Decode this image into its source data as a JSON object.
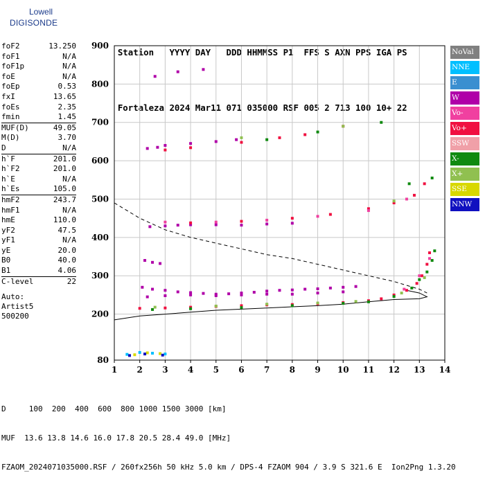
{
  "logo": {
    "line1": "Lowell",
    "line2": "DIGISONDE"
  },
  "header": {
    "labels": [
      "Station",
      "YYYY DAY",
      "DDD HHMMSS P1",
      "FFS S AXN PPS IGA PS"
    ],
    "values": [
      "Fortaleza",
      "2024 Mar11",
      "071 035000 RSF",
      "005 2 713 100 10+ 22"
    ]
  },
  "params": [
    {
      "k": "foF2",
      "v": "13.250",
      "sep": false
    },
    {
      "k": "foF1",
      "v": "N/A",
      "sep": false
    },
    {
      "k": "foF1p",
      "v": "N/A",
      "sep": false
    },
    {
      "k": "foE",
      "v": "N/A",
      "sep": false
    },
    {
      "k": "foEp",
      "v": "0.53",
      "sep": false
    },
    {
      "k": "fxI",
      "v": "13.65",
      "sep": false
    },
    {
      "k": "foEs",
      "v": "2.35",
      "sep": false
    },
    {
      "k": "fmin",
      "v": "1.45",
      "sep": false
    },
    {
      "k": "MUF(D)",
      "v": "49.05",
      "sep": true
    },
    {
      "k": "M(D)",
      "v": "3.70",
      "sep": false
    },
    {
      "k": "D",
      "v": "N/A",
      "sep": false
    },
    {
      "k": "h`F",
      "v": "201.0",
      "sep": true
    },
    {
      "k": "h`F2",
      "v": "201.0",
      "sep": false
    },
    {
      "k": "h`E",
      "v": "N/A",
      "sep": false
    },
    {
      "k": "h`Es",
      "v": "105.0",
      "sep": false
    },
    {
      "k": "hmF2",
      "v": "243.7",
      "sep": true
    },
    {
      "k": "hmF1",
      "v": "N/A",
      "sep": false
    },
    {
      "k": "hmE",
      "v": "110.0",
      "sep": false
    },
    {
      "k": "yF2",
      "v": "47.5",
      "sep": false
    },
    {
      "k": "yF1",
      "v": "N/A",
      "sep": false
    },
    {
      "k": "yE",
      "v": "20.0",
      "sep": false
    },
    {
      "k": "B0",
      "v": "40.0",
      "sep": false
    },
    {
      "k": "B1",
      "v": "4.06",
      "sep": false
    },
    {
      "k": "C-level",
      "v": "22",
      "sep": true
    }
  ],
  "autoscale": [
    "Auto:",
    "Artist5",
    "500200"
  ],
  "legend": [
    {
      "label": "NoVal",
      "color": "#808080"
    },
    {
      "label": "NNE",
      "color": "#00bfff"
    },
    {
      "label": "E",
      "color": "#3a8fd0"
    },
    {
      "label": "W",
      "color": "#b000a8"
    },
    {
      "label": "Vo-",
      "color": "#f040a0"
    },
    {
      "label": "Vo+",
      "color": "#f01040"
    },
    {
      "label": "SSW",
      "color": "#f0a0a8"
    },
    {
      "label": "X-",
      "color": "#108a10"
    },
    {
      "label": "X+",
      "color": "#90c050"
    },
    {
      "label": "SSE",
      "color": "#d8d800"
    },
    {
      "label": "NNW",
      "color": "#1010c0"
    }
  ],
  "footer": {
    "line1": "D     100  200  400  600  800 1000 1500 3000 [km]",
    "line2": "MUF  13.6 13.8 14.6 16.0 17.8 20.5 28.4 49.0 [MHz]",
    "line3": "FZAOM_2024071035000.RSF / 260fx256h 50 kHz 5.0 km / DPS-4 FZAOM 904 / 3.9 S 321.6 E  Ion2Png 1.3.20"
  },
  "chart_data": {
    "type": "scatter",
    "xlim": [
      1,
      14
    ],
    "ylim": [
      80,
      900
    ],
    "xticks": [
      1,
      2,
      3,
      4,
      5,
      6,
      7,
      8,
      9,
      10,
      11,
      12,
      13,
      14
    ],
    "yticks": [
      80,
      200,
      300,
      400,
      500,
      600,
      700,
      800,
      900
    ],
    "grid": true,
    "series": [
      {
        "color": "#b000a8",
        "points": [
          [
            2.1,
            270
          ],
          [
            2.5,
            265
          ],
          [
            3.0,
            262
          ],
          [
            3.5,
            258
          ],
          [
            4,
            256
          ],
          [
            4.5,
            254
          ],
          [
            5,
            252
          ],
          [
            5.5,
            253
          ],
          [
            6,
            255
          ],
          [
            6.5,
            257
          ],
          [
            7,
            260
          ],
          [
            7.5,
            262
          ],
          [
            8,
            263
          ],
          [
            8.5,
            265
          ],
          [
            9,
            266
          ],
          [
            9.5,
            268
          ],
          [
            10,
            270
          ],
          [
            10.5,
            272
          ],
          [
            2.3,
            245
          ],
          [
            3,
            248
          ],
          [
            4,
            250
          ],
          [
            5,
            248
          ],
          [
            6,
            250
          ],
          [
            7,
            252
          ],
          [
            8,
            252
          ],
          [
            9,
            255
          ],
          [
            10,
            258
          ],
          [
            2.4,
            428
          ],
          [
            3,
            430
          ],
          [
            3.5,
            432
          ],
          [
            4,
            433
          ],
          [
            5,
            433
          ],
          [
            6,
            432
          ],
          [
            7,
            435
          ],
          [
            8,
            437
          ],
          [
            2.2,
            340
          ],
          [
            2.5,
            335
          ],
          [
            2.8,
            332
          ],
          [
            2.3,
            632
          ],
          [
            2.7,
            635
          ],
          [
            3,
            640
          ],
          [
            4,
            645
          ],
          [
            5,
            650
          ],
          [
            5.8,
            655
          ],
          [
            2.6,
            820
          ],
          [
            3.5,
            832
          ],
          [
            4.5,
            838
          ]
        ]
      },
      {
        "color": "#f01040",
        "points": [
          [
            2,
            215
          ],
          [
            3,
            216
          ],
          [
            4,
            218
          ],
          [
            5,
            220
          ],
          [
            6,
            222
          ],
          [
            7,
            224
          ],
          [
            8,
            225
          ],
          [
            9,
            227
          ],
          [
            10,
            230
          ],
          [
            11,
            235
          ],
          [
            11.5,
            240
          ],
          [
            12,
            250
          ],
          [
            12.5,
            262
          ],
          [
            12.9,
            280
          ],
          [
            13.1,
            300
          ],
          [
            13.3,
            330
          ],
          [
            13.4,
            360
          ],
          [
            3,
            628
          ],
          [
            4,
            634
          ],
          [
            6,
            648
          ],
          [
            7.5,
            660
          ],
          [
            8.5,
            668
          ],
          [
            10,
            690
          ],
          [
            4,
            438
          ],
          [
            6,
            442
          ],
          [
            8,
            450
          ],
          [
            9.5,
            460
          ],
          [
            11,
            475
          ],
          [
            12,
            490
          ],
          [
            12.8,
            510
          ],
          [
            13.2,
            540
          ]
        ]
      },
      {
        "color": "#108a10",
        "points": [
          [
            2.5,
            212
          ],
          [
            4,
            214
          ],
          [
            6,
            217
          ],
          [
            8,
            222
          ],
          [
            10,
            228
          ],
          [
            11,
            232
          ],
          [
            12,
            246
          ],
          [
            12.7,
            268
          ],
          [
            13,
            290
          ],
          [
            13.3,
            310
          ],
          [
            13.5,
            340
          ],
          [
            13.6,
            365
          ],
          [
            7,
            655
          ],
          [
            9,
            675
          ],
          [
            11.5,
            700
          ],
          [
            12.6,
            540
          ],
          [
            13.5,
            555
          ]
        ]
      },
      {
        "color": "#90c050",
        "points": [
          [
            2.6,
            218
          ],
          [
            5,
            221
          ],
          [
            7,
            226
          ],
          [
            9,
            229
          ],
          [
            10.5,
            233
          ],
          [
            12.3,
            255
          ],
          [
            13.2,
            295
          ],
          [
            6,
            660
          ],
          [
            10,
            690
          ],
          [
            12,
            495
          ]
        ]
      },
      {
        "color": "#f040a0",
        "points": [
          [
            3,
            440
          ],
          [
            5,
            440
          ],
          [
            7,
            445
          ],
          [
            9,
            455
          ],
          [
            11,
            470
          ],
          [
            12.5,
            500
          ],
          [
            12.4,
            265
          ],
          [
            13,
            300
          ],
          [
            13.4,
            345
          ]
        ]
      },
      {
        "color": "#00bfff",
        "points": [
          [
            1.5,
            95
          ],
          [
            2,
            100
          ],
          [
            2.5,
            98
          ],
          [
            3,
            96
          ]
        ]
      },
      {
        "color": "#d8d800",
        "points": [
          [
            1.8,
            94
          ],
          [
            2.3,
            99
          ],
          [
            2.8,
            97
          ]
        ]
      },
      {
        "color": "#1010c0",
        "points": [
          [
            1.6,
            92
          ],
          [
            2.2,
            96
          ],
          [
            2.9,
            93
          ]
        ]
      }
    ],
    "curves": [
      {
        "style": "dashed",
        "points": [
          [
            1,
            490
          ],
          [
            2,
            450
          ],
          [
            3,
            420
          ],
          [
            4,
            400
          ],
          [
            5,
            385
          ],
          [
            6,
            370
          ],
          [
            7,
            355
          ],
          [
            8,
            345
          ],
          [
            9,
            330
          ],
          [
            10,
            315
          ],
          [
            11,
            300
          ],
          [
            12,
            285
          ],
          [
            13,
            265
          ],
          [
            13.3,
            255
          ]
        ]
      },
      {
        "style": "solid",
        "points": [
          [
            1,
            185
          ],
          [
            2,
            195
          ],
          [
            3,
            200
          ],
          [
            4,
            205
          ],
          [
            5,
            210
          ],
          [
            6,
            213
          ],
          [
            7,
            216
          ],
          [
            8,
            219
          ],
          [
            9,
            222
          ],
          [
            10,
            226
          ],
          [
            11,
            232
          ],
          [
            12,
            238
          ],
          [
            13,
            240
          ],
          [
            13.3,
            245
          ],
          [
            13,
            255
          ],
          [
            12.5,
            262
          ]
        ]
      }
    ]
  }
}
